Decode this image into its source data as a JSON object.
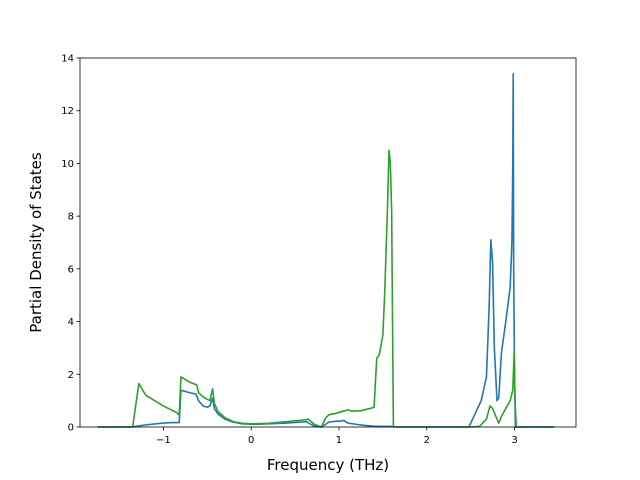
{
  "chart_data": {
    "type": "line",
    "xlabel": "Frequency (THz)",
    "ylabel": "Partial Density of States",
    "xlim": [
      -1.95,
      3.7
    ],
    "ylim": [
      0,
      14
    ],
    "xticks": [
      -1,
      0,
      1,
      2,
      3
    ],
    "yticks": [
      0,
      2,
      4,
      6,
      8,
      10,
      12,
      14
    ],
    "grid": false,
    "legend": "none",
    "series": [
      {
        "color": "#1f77b4",
        "x": [
          -1.75,
          -1.35,
          -1.3,
          -1.2,
          -1.0,
          -0.9,
          -0.82,
          -0.8,
          -0.7,
          -0.63,
          -0.6,
          -0.55,
          -0.5,
          -0.47,
          -0.45,
          -0.44,
          -0.42,
          -0.38,
          -0.3,
          -0.2,
          -0.1,
          0.0,
          0.2,
          0.4,
          0.55,
          0.63,
          0.67,
          0.72,
          0.8,
          0.85,
          0.88,
          0.92,
          0.97,
          1.02,
          1.05,
          1.08,
          1.1,
          1.2,
          1.3,
          1.4,
          1.5,
          1.55,
          1.58,
          1.6,
          1.62,
          1.7,
          2.0,
          2.3,
          2.48,
          2.55,
          2.62,
          2.68,
          2.71,
          2.73,
          2.75,
          2.77,
          2.8,
          2.82,
          2.85,
          2.9,
          2.95,
          2.97,
          2.98,
          2.985,
          2.99,
          3.0,
          3.01,
          3.1,
          3.45
        ],
        "y": [
          0,
          0,
          0.03,
          0.08,
          0.15,
          0.17,
          0.17,
          1.4,
          1.3,
          1.25,
          1.0,
          0.8,
          0.75,
          0.8,
          1.0,
          1.1,
          0.7,
          0.5,
          0.3,
          0.18,
          0.12,
          0.1,
          0.12,
          0.15,
          0.18,
          0.2,
          0.12,
          0.03,
          0.0,
          0.1,
          0.18,
          0.2,
          0.22,
          0.22,
          0.25,
          0.2,
          0.15,
          0.1,
          0.06,
          0.03,
          0.02,
          0.02,
          0.02,
          0.02,
          0.01,
          0.0,
          0.0,
          0.0,
          0.0,
          0.5,
          1.0,
          1.9,
          4.5,
          7.1,
          6.2,
          3.0,
          1.0,
          1.1,
          2.8,
          4.0,
          5.3,
          7.0,
          10.0,
          13.4,
          6.0,
          2.0,
          0.0,
          0.0,
          0.0
        ]
      },
      {
        "color": "#2ca02c",
        "x": [
          -1.75,
          -1.35,
          -1.28,
          -1.2,
          -1.0,
          -0.85,
          -0.82,
          -0.8,
          -0.7,
          -0.62,
          -0.6,
          -0.55,
          -0.5,
          -0.47,
          -0.45,
          -0.44,
          -0.42,
          -0.38,
          -0.3,
          -0.2,
          -0.1,
          0.0,
          0.2,
          0.4,
          0.55,
          0.63,
          0.65,
          0.72,
          0.8,
          0.85,
          0.88,
          0.92,
          0.95,
          1.0,
          1.05,
          1.1,
          1.15,
          1.25,
          1.35,
          1.4,
          1.43,
          1.46,
          1.5,
          1.52,
          1.55,
          1.57,
          1.585,
          1.6,
          1.61,
          1.62,
          1.7,
          2.0,
          2.3,
          2.5,
          2.6,
          2.68,
          2.72,
          2.75,
          2.8,
          2.82,
          2.85,
          2.9,
          2.95,
          2.98,
          2.995,
          3.005,
          3.02,
          3.1,
          3.45
        ],
        "y": [
          0,
          0,
          1.65,
          1.2,
          0.8,
          0.55,
          0.45,
          1.9,
          1.7,
          1.6,
          1.3,
          1.15,
          1.05,
          1.0,
          1.3,
          1.45,
          0.9,
          0.6,
          0.35,
          0.2,
          0.14,
          0.12,
          0.14,
          0.2,
          0.25,
          0.28,
          0.3,
          0.1,
          0.0,
          0.35,
          0.45,
          0.5,
          0.5,
          0.55,
          0.6,
          0.65,
          0.6,
          0.62,
          0.7,
          0.75,
          2.6,
          2.75,
          3.5,
          5.0,
          8.0,
          10.5,
          10.0,
          8.2,
          4.0,
          0.0,
          0.0,
          0.0,
          0.0,
          0.0,
          0.02,
          0.3,
          0.8,
          0.7,
          0.3,
          0.15,
          0.4,
          0.7,
          1.0,
          1.4,
          2.8,
          1.0,
          0.0,
          0.0,
          0.0
        ]
      }
    ]
  }
}
